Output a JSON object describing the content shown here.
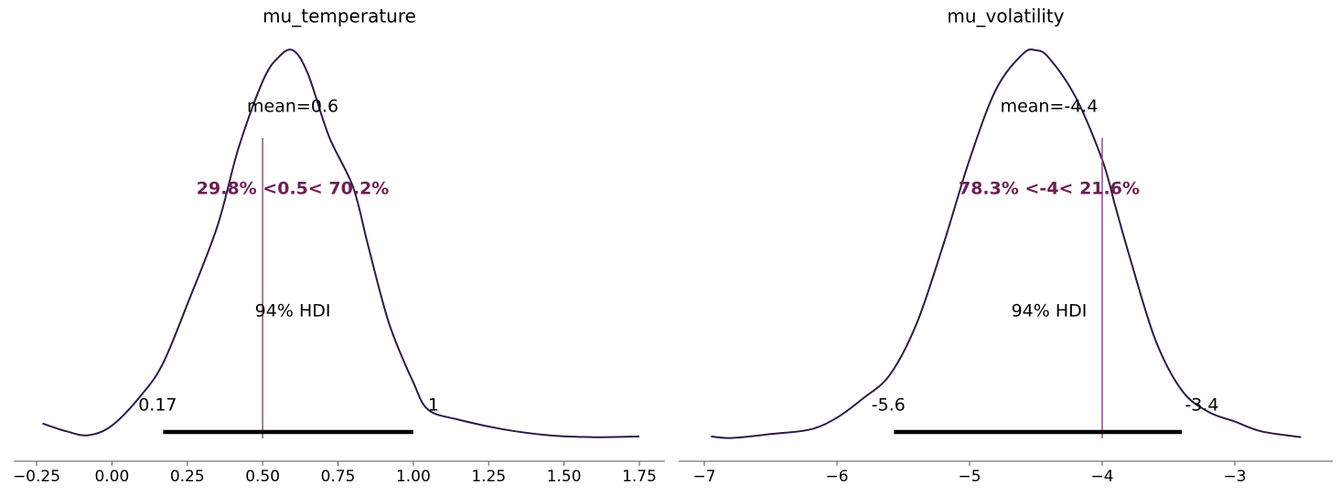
{
  "colors": {
    "density": "#2e1a47",
    "ref_line": "#8a4f8a",
    "ref_text": "#6b1f55",
    "hdi_bar": "#000000",
    "axis": "#555555"
  },
  "chart_data": [
    {
      "type": "line",
      "title": "mu_temperature",
      "xlabel": "",
      "ylabel": "",
      "xlim": [
        -0.25,
        1.75
      ],
      "x_ticks": [
        -0.25,
        0.0,
        0.25,
        0.5,
        0.75,
        1.0,
        1.25,
        1.5,
        1.75
      ],
      "x_tick_labels": [
        "−0.25",
        "0.00",
        "0.25",
        "0.50",
        "0.75",
        "1.00",
        "1.25",
        "1.50",
        "1.75"
      ],
      "density": {
        "x": [
          -0.23,
          -0.15,
          -0.08,
          0.0,
          0.1,
          0.17,
          0.25,
          0.35,
          0.42,
          0.5,
          0.55,
          0.6,
          0.65,
          0.72,
          0.8,
          0.85,
          0.92,
          1.0,
          1.05,
          1.15,
          1.3,
          1.45,
          1.6,
          1.75
        ],
        "y": [
          0.045,
          0.025,
          0.015,
          0.04,
          0.12,
          0.2,
          0.35,
          0.55,
          0.75,
          0.92,
          0.98,
          1.0,
          0.94,
          0.78,
          0.65,
          0.5,
          0.3,
          0.15,
          0.08,
          0.055,
          0.03,
          0.015,
          0.01,
          0.012
        ]
      },
      "mean_label": "mean=0.6",
      "mean": 0.6,
      "ref_value": 0.5,
      "ref_label": "29.8% <0.5< 70.2%",
      "hdi_label": "94% HDI",
      "hdi": [
        0.17,
        1.0
      ],
      "hdi_low_label": "0.17",
      "hdi_high_label": "1"
    },
    {
      "type": "line",
      "title": "mu_volatility",
      "xlabel": "",
      "ylabel": "",
      "xlim": [
        -7,
        -3
      ],
      "x_ticks": [
        -7,
        -6,
        -5,
        -4,
        -3
      ],
      "x_tick_labels": [
        "−7",
        "−6",
        "−5",
        "−4",
        "−3"
      ],
      "density": {
        "x": [
          -6.95,
          -6.8,
          -6.5,
          -6.2,
          -6.0,
          -5.8,
          -5.6,
          -5.4,
          -5.2,
          -5.0,
          -4.8,
          -4.6,
          -4.5,
          -4.4,
          -4.2,
          -4.0,
          -3.9,
          -3.8,
          -3.6,
          -3.4,
          -3.2,
          -3.0,
          -2.8,
          -2.5
        ],
        "y": [
          0.012,
          0.008,
          0.018,
          0.03,
          0.06,
          0.11,
          0.17,
          0.3,
          0.5,
          0.72,
          0.9,
          0.99,
          1.0,
          0.98,
          0.88,
          0.72,
          0.6,
          0.48,
          0.26,
          0.13,
          0.075,
          0.05,
          0.025,
          0.01
        ]
      },
      "mean_label": "mean=-4.4",
      "mean": -4.4,
      "ref_value": -4,
      "ref_label": "78.3% <-4< 21.6%",
      "hdi_label": "94% HDI",
      "hdi": [
        -5.57,
        -3.4
      ],
      "hdi_low_label": "-5.6",
      "hdi_high_label": "-3.4"
    }
  ]
}
